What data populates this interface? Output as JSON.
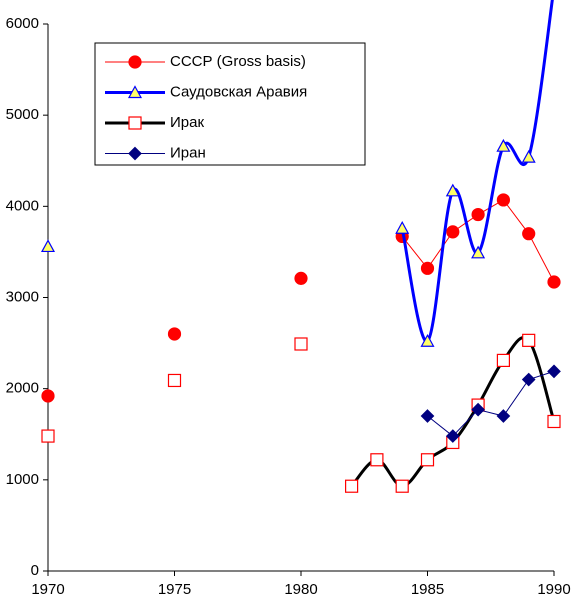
{
  "chart_data": {
    "type": "line",
    "x": [
      1970,
      1971,
      1972,
      1973,
      1974,
      1975,
      1976,
      1977,
      1978,
      1979,
      1980,
      1981,
      1982,
      1983,
      1984,
      1985,
      1986,
      1987,
      1988,
      1989,
      1990
    ],
    "series": [
      {
        "name": "СССР (Gross basis)",
        "color": "#ff0000",
        "marker": "circle",
        "marker_fill": "#ff0000",
        "line_width": 1,
        "smooth": false,
        "values": [
          1920,
          null,
          null,
          null,
          null,
          2600,
          null,
          null,
          null,
          null,
          3210,
          null,
          null,
          null,
          3670,
          3320,
          3720,
          3910,
          4070,
          3700,
          3170
        ]
      },
      {
        "name": "Саудовская Аравия",
        "color": "#0000ff",
        "marker": "triangle",
        "marker_fill": "#ffff66",
        "line_width": 3,
        "smooth": true,
        "values": [
          3560,
          null,
          null,
          null,
          null,
          null,
          null,
          null,
          null,
          null,
          null,
          null,
          null,
          null,
          3760,
          2520,
          4170,
          3490,
          4660,
          4540,
          6400
        ]
      },
      {
        "name": "Ирак",
        "color": "#000000",
        "marker": "square",
        "marker_fill": "#ffffff",
        "marker_stroke": "#ff0000",
        "line_width": 3,
        "smooth": true,
        "values": [
          1480,
          null,
          null,
          null,
          null,
          2090,
          null,
          null,
          null,
          null,
          2490,
          null,
          930,
          1220,
          930,
          1220,
          1410,
          1820,
          2310,
          2530,
          1640
        ]
      },
      {
        "name": "Иран",
        "color": "#000080",
        "marker": "diamond",
        "marker_fill": "#000080",
        "line_width": 1,
        "smooth": false,
        "values": [
          null,
          null,
          null,
          null,
          null,
          null,
          null,
          null,
          null,
          null,
          null,
          null,
          null,
          null,
          null,
          1700,
          1480,
          1770,
          1700,
          2100,
          2190
        ]
      }
    ],
    "xlim": [
      1970,
      1990
    ],
    "xticks": [
      1970,
      1975,
      1980,
      1985,
      1990
    ],
    "ylim": [
      0,
      6000
    ],
    "yticks": [
      0,
      1000,
      2000,
      3000,
      4000,
      5000,
      6000
    ],
    "grid": false,
    "legend": "upper left"
  }
}
